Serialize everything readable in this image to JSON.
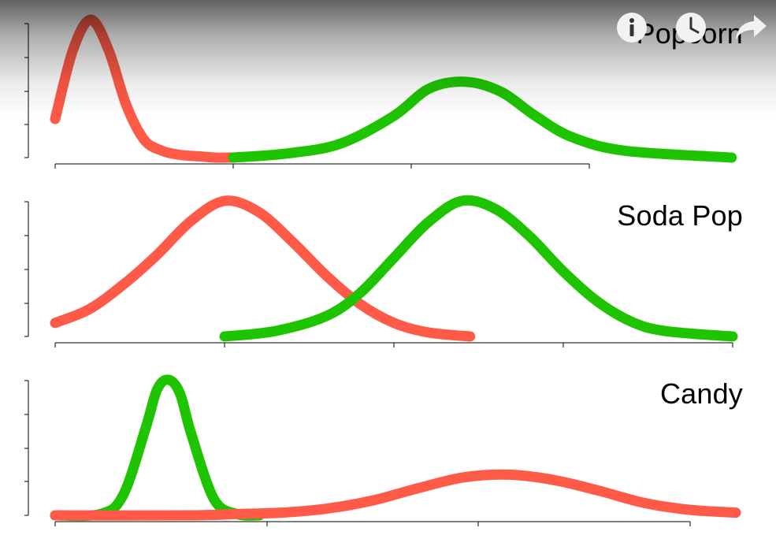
{
  "chart_data": [
    {
      "type": "line",
      "title": "Popcorn",
      "series": [
        {
          "color": "#ff5a47",
          "x": [
            0,
            1,
            2,
            3,
            4,
            5,
            6,
            7,
            8,
            9,
            10
          ],
          "y": [
            0.28,
            0.78,
            1.0,
            0.78,
            0.38,
            0.13,
            0.05,
            0.02,
            0.01,
            0.0,
            0.0
          ]
        },
        {
          "color": "#1ec400",
          "x": [
            10,
            13,
            16,
            19,
            21,
            23,
            25,
            27,
            29,
            32,
            38
          ],
          "y": [
            0.0,
            0.03,
            0.1,
            0.3,
            0.5,
            0.55,
            0.48,
            0.3,
            0.15,
            0.05,
            0.0
          ]
        }
      ]
    },
    {
      "type": "line",
      "title": "Soda Pop",
      "series": [
        {
          "color": "#ff5a47",
          "x": [
            0,
            2,
            4,
            6,
            8,
            10,
            12,
            14,
            16,
            18,
            20,
            22,
            24.5
          ],
          "y": [
            0.1,
            0.2,
            0.38,
            0.6,
            0.85,
            1.0,
            0.92,
            0.7,
            0.45,
            0.24,
            0.1,
            0.03,
            0.0
          ]
        },
        {
          "color": "#1ec400",
          "x": [
            10,
            13,
            16,
            18,
            20,
            22,
            24,
            26,
            28,
            30,
            32,
            34,
            36,
            40
          ],
          "y": [
            0.0,
            0.04,
            0.15,
            0.32,
            0.58,
            0.84,
            1.0,
            0.94,
            0.74,
            0.48,
            0.26,
            0.11,
            0.04,
            0.0
          ]
        }
      ]
    },
    {
      "type": "line",
      "title": "Candy",
      "series": [
        {
          "color": "#1ec400",
          "x": [
            0,
            2,
            3,
            4,
            4.5,
            5,
            5.5,
            6,
            7,
            8,
            9
          ],
          "y": [
            0.0,
            0.01,
            0.15,
            0.65,
            0.93,
            1.0,
            0.9,
            0.6,
            0.12,
            0.01,
            0.0
          ]
        },
        {
          "color": "#ff5a47",
          "x": [
            0,
            6,
            8,
            10,
            12,
            14,
            16,
            18,
            20,
            22,
            24,
            26,
            28,
            30
          ],
          "y": [
            0.0,
            0.0,
            0.01,
            0.02,
            0.05,
            0.11,
            0.2,
            0.28,
            0.3,
            0.26,
            0.18,
            0.09,
            0.04,
            0.02
          ]
        }
      ]
    }
  ],
  "controls": {
    "info": {
      "icon": "info-icon"
    },
    "history": {
      "icon": "clock-icon"
    },
    "share": {
      "icon": "share-arrow-icon"
    }
  }
}
